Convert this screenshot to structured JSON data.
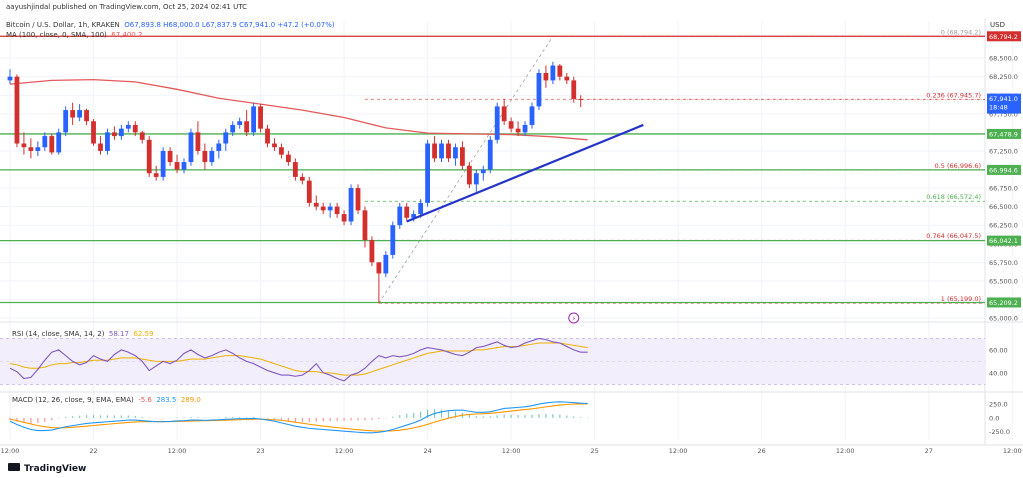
{
  "header": {
    "publisher": "aayushjindal published on TradingView.com, Oct 25, 2024 02:41 UTC",
    "symbol_line": "Bitcoin / U.S. Dollar, 1h, KRAKEN",
    "ohlc": "O67,893.8  H68,000.0  L67,837.9  C67,941.0  +47.2 (+0.07%)",
    "ma_label": "MA (100, close, 0, SMA, 100)",
    "ma_value": "67,400.2",
    "currency": "USD"
  },
  "rsi_label": {
    "name": "RSI (14, close, SMA, 14, 2)",
    "v1": "58.17",
    "v2": "62.59"
  },
  "macd_label": {
    "name": "MACD (12, 26, close, 9, EMA, EMA)",
    "v1": "-5.6",
    "v2": "283.5",
    "v3": "289.0"
  },
  "footer": {
    "brand": "TradingView"
  },
  "colors": {
    "up": "#2962ff",
    "down": "#d32f2f",
    "ma": "#e35a5a",
    "support": "#4caf50",
    "trend": "#2433c8",
    "rsi": "#7e57c2",
    "macd": "#2196f3",
    "signal": "#ff9800"
  },
  "chart_data": {
    "type": "candlestick",
    "title": "Bitcoin / U.S. Dollar, 1h, KRAKEN",
    "ylim": [
      65000,
      69000
    ],
    "y_ticks": [
      "68,500.0",
      "68,250.0",
      "68,000.0",
      "67,750.0",
      "67,250.0",
      "67,000.0",
      "66,750.0",
      "66,500.0",
      "66,250.0",
      "66,000.0",
      "65,750.0",
      "65,500.0",
      "65,250.0",
      "65,000.0"
    ],
    "y_tick_values": [
      68500,
      68250,
      68000,
      67750,
      67250,
      67000,
      66750,
      66500,
      66250,
      66000,
      65750,
      65500,
      65250,
      65000
    ],
    "x_ticks": [
      "12:00",
      "22",
      "12:00",
      "23",
      "12:00",
      "24",
      "12:00",
      "25",
      "12:00",
      "26",
      "12:00",
      "27",
      "12:00"
    ],
    "x_tick_bars": [
      0,
      12,
      24,
      36,
      48,
      60,
      72,
      84,
      96,
      108,
      120,
      132,
      144
    ],
    "candles": [
      [
        68200,
        68350,
        68150,
        68250
      ],
      [
        68250,
        68280,
        67300,
        67350
      ],
      [
        67350,
        67500,
        67200,
        67300
      ],
      [
        67300,
        67420,
        67150,
        67250
      ],
      [
        67250,
        67380,
        67180,
        67300
      ],
      [
        67300,
        67500,
        67250,
        67450
      ],
      [
        67450,
        67480,
        67200,
        67230
      ],
      [
        67230,
        67550,
        67200,
        67500
      ],
      [
        67500,
        67850,
        67450,
        67800
      ],
      [
        67800,
        67900,
        67600,
        67700
      ],
      [
        67700,
        67880,
        67650,
        67800
      ],
      [
        67800,
        67820,
        67600,
        67650
      ],
      [
        67650,
        67680,
        67320,
        67350
      ],
      [
        67350,
        67450,
        67200,
        67250
      ],
      [
        67250,
        67550,
        67200,
        67500
      ],
      [
        67500,
        67580,
        67400,
        67450
      ],
      [
        67450,
        67600,
        67400,
        67550
      ],
      [
        67550,
        67650,
        67500,
        67600
      ],
      [
        67600,
        67650,
        67450,
        67500
      ],
      [
        67500,
        67520,
        67350,
        67400
      ],
      [
        67400,
        67450,
        66900,
        66950
      ],
      [
        66950,
        67050,
        66850,
        66900
      ],
      [
        66900,
        67300,
        66850,
        67250
      ],
      [
        67250,
        67300,
        67050,
        67100
      ],
      [
        67100,
        67200,
        66950,
        67000
      ],
      [
        67000,
        67150,
        66950,
        67100
      ],
      [
        67100,
        67550,
        67050,
        67500
      ],
      [
        67500,
        67650,
        67200,
        67250
      ],
      [
        67250,
        67350,
        67000,
        67100
      ],
      [
        67100,
        67300,
        67050,
        67250
      ],
      [
        67250,
        67400,
        67150,
        67350
      ],
      [
        67350,
        67550,
        67250,
        67500
      ],
      [
        67500,
        67650,
        67450,
        67600
      ],
      [
        67600,
        67700,
        67550,
        67650
      ],
      [
        67650,
        67800,
        67450,
        67500
      ],
      [
        67500,
        67900,
        67450,
        67850
      ],
      [
        67850,
        67880,
        67500,
        67550
      ],
      [
        67550,
        67600,
        67300,
        67350
      ],
      [
        67350,
        67420,
        67250,
        67300
      ],
      [
        67300,
        67350,
        67150,
        67200
      ],
      [
        67200,
        67250,
        67050,
        67100
      ],
      [
        67100,
        67150,
        66850,
        66900
      ],
      [
        66900,
        66950,
        66800,
        66850
      ],
      [
        66850,
        66900,
        66500,
        66550
      ],
      [
        66550,
        66650,
        66450,
        66500
      ],
      [
        66500,
        66550,
        66400,
        66450
      ],
      [
        66450,
        66550,
        66350,
        66500
      ],
      [
        66500,
        66550,
        66350,
        66400
      ],
      [
        66400,
        66450,
        66250,
        66300
      ],
      [
        66300,
        66800,
        66250,
        66750
      ],
      [
        66750,
        66800,
        66400,
        66450
      ],
      [
        66450,
        66500,
        65950,
        66050
      ],
      [
        66050,
        66100,
        65700,
        65750
      ],
      [
        65750,
        65750,
        65200,
        65600
      ],
      [
        65600,
        65900,
        65550,
        65850
      ],
      [
        65850,
        66300,
        65800,
        66250
      ],
      [
        66250,
        66550,
        66200,
        66500
      ],
      [
        66500,
        66550,
        66300,
        66350
      ],
      [
        66350,
        66450,
        66300,
        66400
      ],
      [
        66400,
        66600,
        66350,
        66550
      ],
      [
        66550,
        67400,
        66500,
        67350
      ],
      [
        67350,
        67450,
        67100,
        67150
      ],
      [
        67150,
        67400,
        67100,
        67350
      ],
      [
        67350,
        67400,
        67100,
        67150
      ],
      [
        67150,
        67350,
        67050,
        67300
      ],
      [
        67300,
        67380,
        67000,
        67050
      ],
      [
        67050,
        67100,
        66750,
        66800
      ],
      [
        66800,
        67000,
        66700,
        66950
      ],
      [
        66950,
        67050,
        66850,
        67000
      ],
      [
        67000,
        67450,
        66950,
        67400
      ],
      [
        67400,
        67900,
        67350,
        67850
      ],
      [
        67850,
        67950,
        67600,
        67650
      ],
      [
        67650,
        67700,
        67500,
        67550
      ],
      [
        67550,
        67650,
        67450,
        67500
      ],
      [
        67500,
        67650,
        67450,
        67600
      ],
      [
        67600,
        67900,
        67550,
        67850
      ],
      [
        67850,
        68350,
        67800,
        68300
      ],
      [
        68300,
        68400,
        68100,
        68200
      ],
      [
        68200,
        68450,
        68150,
        68400
      ],
      [
        68400,
        68420,
        68200,
        68250
      ],
      [
        68250,
        68300,
        68150,
        68200
      ],
      [
        68200,
        68250,
        67900,
        67950
      ],
      [
        67950,
        68000,
        67840,
        67941
      ]
    ],
    "ma100": [
      [
        0,
        68150
      ],
      [
        6,
        68200
      ],
      [
        12,
        68210
      ],
      [
        18,
        68180
      ],
      [
        24,
        68080
      ],
      [
        30,
        67960
      ],
      [
        36,
        67880
      ],
      [
        42,
        67800
      ],
      [
        48,
        67700
      ],
      [
        54,
        67560
      ],
      [
        60,
        67490
      ],
      [
        66,
        67480
      ],
      [
        72,
        67470
      ],
      [
        78,
        67440
      ],
      [
        83,
        67400
      ]
    ],
    "fib_levels": [
      {
        "label": "0 (68,794.2)",
        "value": 68794.2
      },
      {
        "label": "0.236 (67,945.7)",
        "value": 67945.7
      },
      {
        "label": "0.5 (66,996.6)",
        "value": 66996.6
      },
      {
        "label": "0.618 (66,572.4)",
        "value": 66572.4
      },
      {
        "label": "0.764 (66,047.5)",
        "value": 66047.5
      },
      {
        "label": "1 (65,199.0)",
        "value": 65199.0
      }
    ],
    "support_lines": [
      {
        "label": "67,478.9",
        "value": 67478.9
      },
      {
        "label": "66,994.6",
        "value": 66994.6
      },
      {
        "label": "66,042.1",
        "value": 66042.1
      },
      {
        "label": "65,209.2",
        "value": 65209.2
      }
    ],
    "fib_swing": {
      "from": [
        53,
        65199
      ],
      "to": [
        78,
        68794
      ]
    },
    "trend_line": {
      "from": [
        57,
        66300
      ],
      "to": [
        91,
        67600
      ]
    },
    "last_price": {
      "label": "67,941.0",
      "time": "18:48",
      "value": 67941.0
    },
    "rsi": {
      "ylim": [
        25,
        80
      ],
      "ticks": [
        60,
        40
      ],
      "band": [
        30,
        70
      ],
      "values": [
        44,
        41,
        35,
        36,
        43,
        51,
        58,
        60,
        55,
        50,
        47,
        49,
        55,
        52,
        50,
        56,
        60,
        58,
        55,
        50,
        42,
        46,
        50,
        48,
        51,
        57,
        60,
        56,
        53,
        55,
        58,
        60,
        57,
        53,
        50,
        48,
        45,
        42,
        40,
        38,
        38,
        37,
        38,
        42,
        48,
        40,
        38,
        35,
        33,
        38,
        40,
        44,
        50,
        55,
        53,
        55,
        54,
        55,
        57,
        60,
        62,
        61,
        60,
        58,
        56,
        55,
        58,
        62,
        63,
        65,
        67,
        64,
        62,
        63,
        66,
        68,
        70,
        69,
        67,
        66,
        63,
        60,
        58,
        58
      ],
      "ma": [
        48,
        47,
        45,
        44,
        44,
        45,
        47,
        48,
        48,
        49,
        49,
        50,
        51,
        51,
        51,
        52,
        53,
        53,
        53,
        52,
        51,
        50,
        50,
        50,
        50,
        51,
        52,
        52,
        52,
        53,
        54,
        55,
        55,
        55,
        54,
        53,
        52,
        50,
        48,
        46,
        44,
        42,
        41,
        41,
        41,
        40,
        40,
        39,
        38,
        38,
        38,
        39,
        41,
        43,
        45,
        47,
        49,
        51,
        53,
        55,
        57,
        58,
        59,
        59,
        59,
        59,
        59,
        60,
        60,
        61,
        62,
        63,
        63,
        63,
        64,
        65,
        66,
        66,
        66,
        66,
        65,
        64,
        63,
        62
      ]
    },
    "macd": {
      "ylim": [
        -400,
        450
      ],
      "ticks": [
        250,
        0,
        -250
      ],
      "macd": [
        -60,
        -120,
        -170,
        -210,
        -230,
        -230,
        -220,
        -190,
        -160,
        -140,
        -120,
        -100,
        -90,
        -80,
        -70,
        -60,
        -50,
        -40,
        -40,
        -50,
        -60,
        -70,
        -70,
        -65,
        -55,
        -50,
        -40,
        -40,
        -45,
        -40,
        -35,
        -25,
        -20,
        -15,
        -15,
        -10,
        -20,
        -40,
        -60,
        -90,
        -120,
        -150,
        -170,
        -190,
        -200,
        -210,
        -220,
        -230,
        -240,
        -250,
        -260,
        -270,
        -270,
        -260,
        -240,
        -210,
        -170,
        -130,
        -90,
        -40,
        30,
        80,
        110,
        130,
        140,
        140,
        120,
        100,
        100,
        110,
        140,
        170,
        180,
        190,
        200,
        220,
        250,
        270,
        285,
        290,
        285,
        275,
        265,
        260
      ],
      "signal": [
        -20,
        -50,
        -80,
        -110,
        -140,
        -160,
        -175,
        -180,
        -178,
        -170,
        -160,
        -150,
        -138,
        -126,
        -115,
        -104,
        -93,
        -82,
        -73,
        -68,
        -66,
        -66,
        -67,
        -67,
        -65,
        -62,
        -57,
        -53,
        -51,
        -49,
        -46,
        -42,
        -38,
        -33,
        -29,
        -25,
        -24,
        -27,
        -34,
        -45,
        -60,
        -78,
        -96,
        -115,
        -132,
        -148,
        -162,
        -176,
        -189,
        -201,
        -213,
        -224,
        -233,
        -239,
        -239,
        -234,
        -222,
        -204,
        -181,
        -153,
        -116,
        -77,
        -39,
        -5,
        24,
        48,
        62,
        70,
        76,
        83,
        94,
        109,
        123,
        137,
        150,
        164,
        181,
        199,
        216,
        231,
        242,
        249,
        252,
        254
      ]
    }
  }
}
